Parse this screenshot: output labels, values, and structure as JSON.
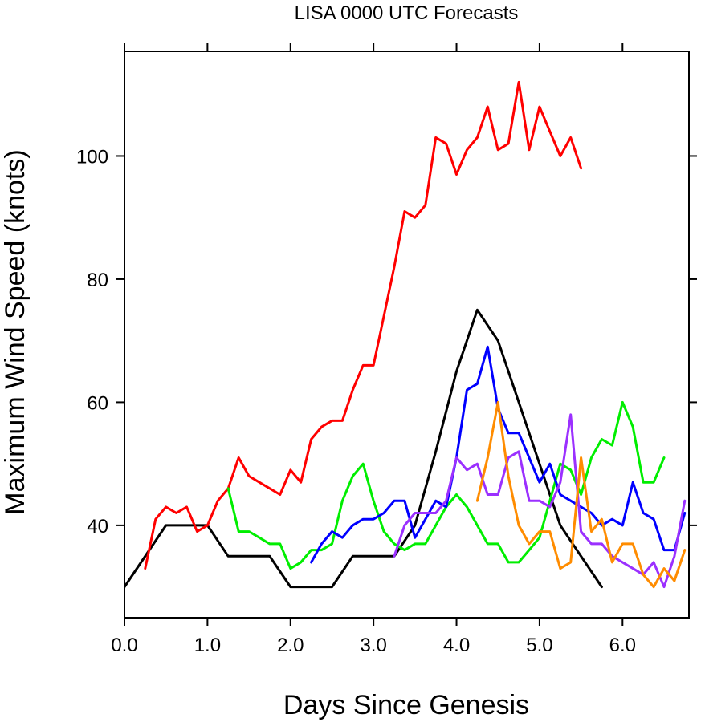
{
  "chart_data": {
    "type": "line",
    "title": "LISA 0000 UTC Forecasts",
    "xlabel": "Days Since Genesis",
    "ylabel": "Maximum Wind Speed (knots)",
    "xlim": [
      0,
      6.8
    ],
    "ylim": [
      25,
      117
    ],
    "x_ticks": [
      0,
      1,
      2,
      3,
      4,
      5,
      6
    ],
    "x_tick_labels": [
      "0.0",
      "1.0",
      "2.0",
      "3.0",
      "4.0",
      "5.0",
      "6.0"
    ],
    "y_ticks": [
      40,
      60,
      80,
      100
    ],
    "y_tick_labels": [
      "40",
      "60",
      "80",
      "100"
    ],
    "grid": false,
    "legend": "none",
    "series": [
      {
        "color": "#000000",
        "x": [
          0,
          0.5,
          1.0,
          1.25,
          1.75,
          2.0,
          2.5,
          2.75,
          3.25,
          3.5,
          3.75,
          4.0,
          4.25,
          4.5,
          4.75,
          5.0,
          5.25,
          5.5,
          5.75
        ],
        "y": [
          30,
          40,
          40,
          35,
          35,
          30,
          30,
          35,
          35,
          40,
          52,
          65,
          75,
          70,
          60,
          50,
          40,
          35,
          30
        ]
      },
      {
        "color": "#ff0000",
        "x": [
          0.25,
          0.375,
          0.5,
          0.625,
          0.75,
          0.875,
          1.0,
          1.125,
          1.25,
          1.375,
          1.5,
          1.625,
          1.75,
          1.875,
          2.0,
          2.125,
          2.25,
          2.375,
          2.5,
          2.625,
          2.75,
          2.875,
          3.0,
          3.125,
          3.25,
          3.375,
          3.5,
          3.625,
          3.75,
          3.875,
          4.0,
          4.125,
          4.25,
          4.375,
          4.5,
          4.625,
          4.75,
          4.875,
          5.0,
          5.125,
          5.25,
          5.375,
          5.5
        ],
        "y": [
          33,
          41,
          43,
          42,
          43,
          39,
          40,
          44,
          46,
          51,
          48,
          47,
          46,
          45,
          49,
          47,
          54,
          56,
          57,
          57,
          62,
          66,
          66,
          74,
          82,
          91,
          90,
          92,
          103,
          102,
          97,
          101,
          103,
          108,
          101,
          102,
          112,
          101,
          108,
          104,
          100,
          103,
          98
        ]
      },
      {
        "color": "#00ee00",
        "x": [
          1.25,
          1.375,
          1.5,
          1.625,
          1.75,
          1.875,
          2.0,
          2.125,
          2.25,
          2.375,
          2.5,
          2.625,
          2.75,
          2.875,
          3.0,
          3.125,
          3.25,
          3.375,
          3.5,
          3.625,
          3.75,
          3.875,
          4.0,
          4.125,
          4.25,
          4.375,
          4.5,
          4.625,
          4.75,
          4.875,
          5.0,
          5.125,
          5.25,
          5.375,
          5.5,
          5.625,
          5.75,
          5.875,
          6.0,
          6.125,
          6.25,
          6.375,
          6.5
        ],
        "y": [
          46,
          39,
          39,
          38,
          37,
          37,
          33,
          34,
          36,
          36,
          37,
          44,
          48,
          50,
          44,
          39,
          37,
          36,
          37,
          37,
          40,
          43,
          45,
          43,
          40,
          37,
          37,
          34,
          34,
          36,
          38,
          44,
          50,
          49,
          45,
          51,
          54,
          53,
          60,
          56,
          47,
          47,
          51
        ]
      },
      {
        "color": "#0000ff",
        "x": [
          2.25,
          2.375,
          2.5,
          2.625,
          2.75,
          2.875,
          3.0,
          3.125,
          3.25,
          3.375,
          3.5,
          3.625,
          3.75,
          3.875,
          4.0,
          4.125,
          4.25,
          4.375,
          4.5,
          4.625,
          4.75,
          4.875,
          5.0,
          5.125,
          5.25,
          5.375,
          5.5,
          5.625,
          5.75,
          5.875,
          6.0,
          6.125,
          6.25,
          6.375,
          6.5,
          6.625,
          6.75
        ],
        "y": [
          34,
          37,
          39,
          38,
          40,
          41,
          41,
          42,
          44,
          44,
          38,
          41,
          44,
          43,
          51,
          62,
          63,
          69,
          59,
          55,
          55,
          51,
          47,
          50,
          45,
          44,
          43,
          42,
          40,
          41,
          40,
          47,
          42,
          41,
          36,
          36,
          42
        ]
      },
      {
        "color": "#9b30ff",
        "x": [
          3.25,
          3.375,
          3.5,
          3.625,
          3.75,
          3.875,
          4.0,
          4.125,
          4.25,
          4.375,
          4.5,
          4.625,
          4.75,
          4.875,
          5.0,
          5.125,
          5.25,
          5.375,
          5.5,
          5.625,
          5.75,
          5.875,
          6.0,
          6.125,
          6.25,
          6.375,
          6.5,
          6.625,
          6.75
        ],
        "y": [
          35,
          40,
          42,
          42,
          42,
          44,
          51,
          49,
          50,
          45,
          45,
          51,
          52,
          44,
          44,
          43,
          47,
          58,
          39,
          37,
          37,
          35,
          34,
          33,
          32,
          34,
          30,
          35,
          44
        ]
      },
      {
        "color": "#ff8c00",
        "x": [
          4.25,
          4.375,
          4.5,
          4.625,
          4.75,
          4.875,
          5.0,
          5.125,
          5.25,
          5.375,
          5.5,
          5.625,
          5.75,
          5.875,
          6.0,
          6.125,
          6.25,
          6.375,
          6.5,
          6.625,
          6.75
        ],
        "y": [
          44,
          51,
          60,
          48,
          40,
          37,
          39,
          39,
          33,
          34,
          51,
          39,
          41,
          34,
          37,
          37,
          32,
          30,
          33,
          31,
          36
        ]
      }
    ]
  }
}
